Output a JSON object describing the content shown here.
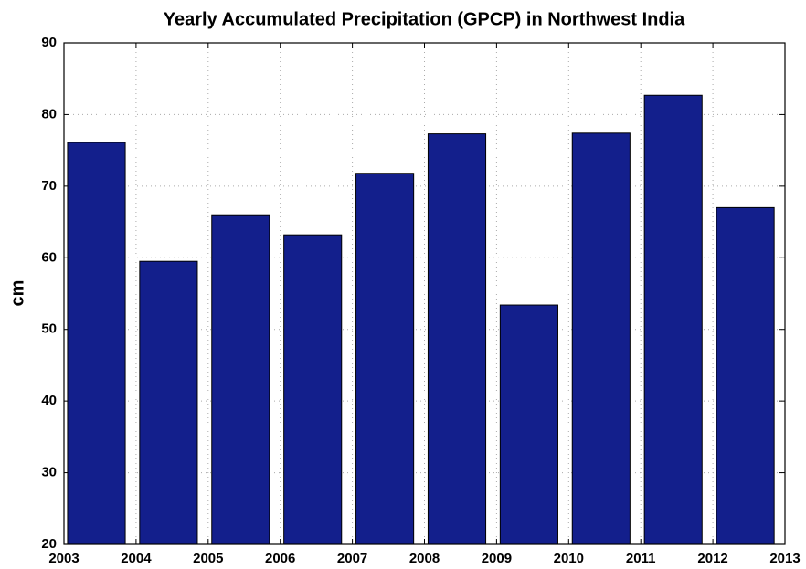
{
  "chart_data": {
    "type": "bar",
    "title": "Yearly Accumulated Precipitation (GPCP) in Northwest India",
    "y_label": "cm",
    "x": [
      2003.45,
      2004.45,
      2005.45,
      2006.45,
      2007.45,
      2008.45,
      2009.45,
      2010.45,
      2011.45,
      2012.45
    ],
    "values": [
      76.1,
      59.5,
      66.0,
      63.2,
      71.8,
      77.3,
      53.4,
      77.4,
      82.7,
      67.0
    ],
    "color": "#131f8c",
    "xlim": [
      2003,
      2013
    ],
    "xticks": [
      2003,
      2004,
      2005,
      2006,
      2007,
      2008,
      2009,
      2010,
      2011,
      2012,
      2013
    ],
    "ylim": [
      20,
      90
    ],
    "yticks": [
      20,
      30,
      40,
      50,
      60,
      70,
      80,
      90
    ],
    "grid": true
  }
}
